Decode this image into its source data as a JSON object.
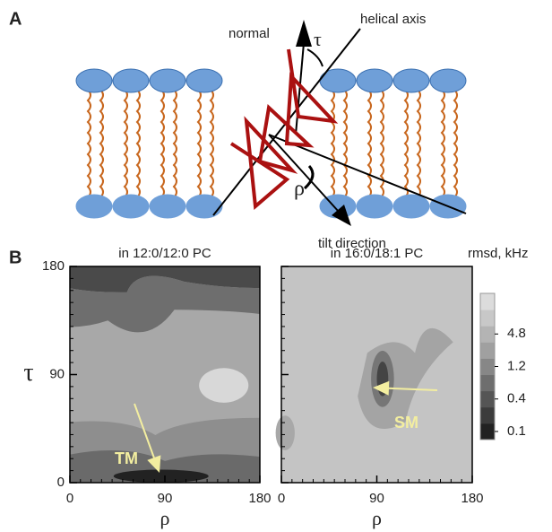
{
  "panel_a": {
    "label": "A",
    "normal": "normal",
    "helical_axis": "helical axis",
    "tau": "τ",
    "rho": "ρ",
    "tilt_direction": "tilt direction"
  },
  "panel_b_label": "B",
  "chart_data": [
    {
      "type": "contour",
      "title": "in 12:0/12:0 PC",
      "x_label": "ρ",
      "y_label": "τ",
      "xlim": [
        0,
        180
      ],
      "ylim": [
        0,
        180
      ],
      "xticks": [
        0,
        90,
        180
      ],
      "yticks": [
        0,
        90,
        180
      ],
      "annotation": "TM"
    },
    {
      "type": "contour",
      "title": "in 16:0/18:1 PC",
      "x_label": "ρ",
      "xlim": [
        0,
        180
      ],
      "ylim": [
        0,
        180
      ],
      "xticks": [
        0,
        90,
        180
      ],
      "yticks": [
        0,
        90,
        180
      ],
      "annotation": "SM"
    }
  ],
  "colorbar": {
    "title": "rmsd, kHz",
    "ticks": [
      0.1,
      0.4,
      1.2,
      4.8
    ]
  }
}
